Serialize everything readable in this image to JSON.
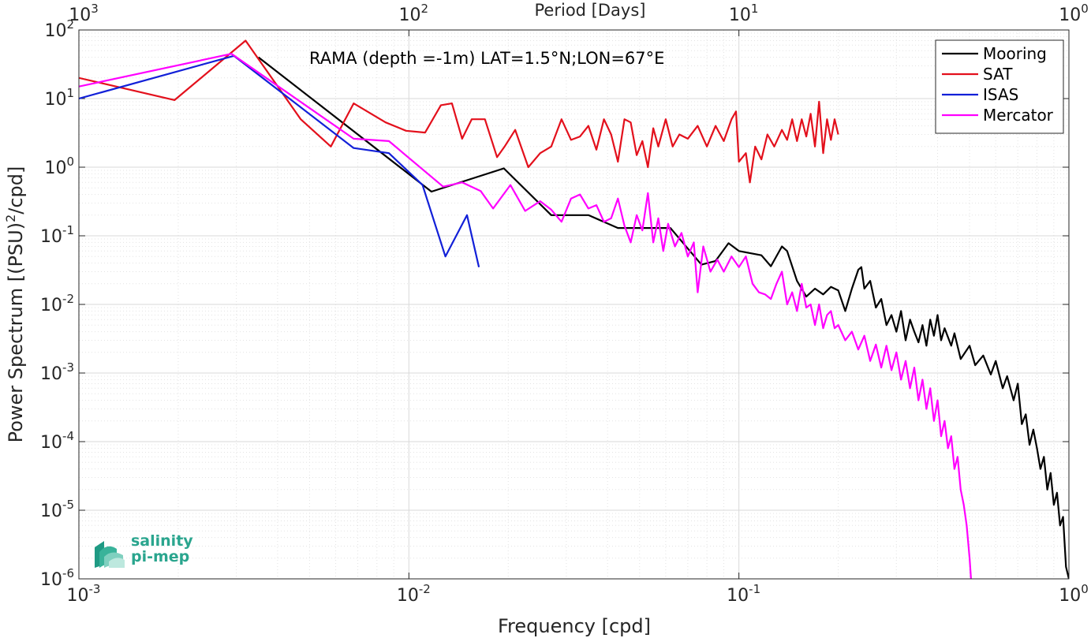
{
  "logo": {
    "line1": "salinity",
    "line2": "pi-mep",
    "color": "#2aa58e"
  },
  "chart_data": {
    "type": "line",
    "title": "RAMA (depth =-1m) LAT=1.5°N;LON=67°E",
    "xlabel": "Frequency [cpd]",
    "ylabel": "Power Spectrum [(PSU)²/cpd]",
    "top_xlabel": "Period [Days]",
    "xscale": "log",
    "yscale": "log",
    "xlim": [
      0.001,
      1
    ],
    "ylim": [
      1e-06,
      100
    ],
    "grid": true,
    "legend_position": "top-right",
    "x_ticks": [
      {
        "base": "10",
        "exp": "-3",
        "value": 0.001
      },
      {
        "base": "10",
        "exp": "-2",
        "value": 0.01
      },
      {
        "base": "10",
        "exp": "-1",
        "value": 0.1
      },
      {
        "base": "10",
        "exp": "0",
        "value": 1
      }
    ],
    "top_ticks": [
      {
        "base": "10",
        "exp": "3",
        "value": 0.001
      },
      {
        "base": "10",
        "exp": "2",
        "value": 0.01
      },
      {
        "base": "10",
        "exp": "1",
        "value": 0.1
      },
      {
        "base": "10",
        "exp": "0",
        "value": 1
      }
    ],
    "y_ticks": [
      {
        "base": "10",
        "exp": "2",
        "value": 100
      },
      {
        "base": "10",
        "exp": "1",
        "value": 10
      },
      {
        "base": "10",
        "exp": "0",
        "value": 1
      },
      {
        "base": "10",
        "exp": "-1",
        "value": 0.1
      },
      {
        "base": "10",
        "exp": "-2",
        "value": 0.01
      },
      {
        "base": "10",
        "exp": "-3",
        "value": 0.001
      },
      {
        "base": "10",
        "exp": "-4",
        "value": 0.0001
      },
      {
        "base": "10",
        "exp": "-5",
        "value": 1e-05
      },
      {
        "base": "10",
        "exp": "-6",
        "value": 1e-06
      }
    ],
    "series": [
      {
        "name": "Mooring",
        "color": "#000000",
        "points": [
          [
            0.0035,
            40
          ],
          [
            0.0117,
            0.44
          ],
          [
            0.0194,
            0.96
          ],
          [
            0.027,
            0.2
          ],
          [
            0.035,
            0.2
          ],
          [
            0.043,
            0.13
          ],
          [
            0.062,
            0.13
          ],
          [
            0.077,
            0.038
          ],
          [
            0.085,
            0.043
          ],
          [
            0.093,
            0.078
          ],
          [
            0.1,
            0.06
          ],
          [
            0.117,
            0.052
          ],
          [
            0.125,
            0.036
          ],
          [
            0.135,
            0.07
          ],
          [
            0.14,
            0.06
          ],
          [
            0.15,
            0.022
          ],
          [
            0.16,
            0.013
          ],
          [
            0.17,
            0.017
          ],
          [
            0.18,
            0.014
          ],
          [
            0.19,
            0.018
          ],
          [
            0.2,
            0.016
          ],
          [
            0.21,
            0.008
          ],
          [
            0.22,
            0.017
          ],
          [
            0.23,
            0.032
          ],
          [
            0.235,
            0.035
          ],
          [
            0.24,
            0.017
          ],
          [
            0.25,
            0.022
          ],
          [
            0.26,
            0.009
          ],
          [
            0.27,
            0.012
          ],
          [
            0.28,
            0.005
          ],
          [
            0.29,
            0.007
          ],
          [
            0.3,
            0.004
          ],
          [
            0.31,
            0.008
          ],
          [
            0.32,
            0.003
          ],
          [
            0.33,
            0.006
          ],
          [
            0.34,
            0.004
          ],
          [
            0.35,
            0.0028
          ],
          [
            0.36,
            0.005
          ],
          [
            0.37,
            0.0025
          ],
          [
            0.38,
            0.006
          ],
          [
            0.39,
            0.0035
          ],
          [
            0.4,
            0.007
          ],
          [
            0.41,
            0.003
          ],
          [
            0.42,
            0.0045
          ],
          [
            0.44,
            0.0025
          ],
          [
            0.45,
            0.0038
          ],
          [
            0.47,
            0.0016
          ],
          [
            0.5,
            0.0025
          ],
          [
            0.52,
            0.0013
          ],
          [
            0.55,
            0.0018
          ],
          [
            0.58,
            0.00095
          ],
          [
            0.6,
            0.0015
          ],
          [
            0.63,
            0.0006
          ],
          [
            0.65,
            0.0009
          ],
          [
            0.68,
            0.0004
          ],
          [
            0.7,
            0.0007
          ],
          [
            0.72,
            0.00018
          ],
          [
            0.74,
            0.00025
          ],
          [
            0.76,
            9e-05
          ],
          [
            0.78,
            0.00015
          ],
          [
            0.8,
            8e-05
          ],
          [
            0.82,
            4e-05
          ],
          [
            0.84,
            6e-05
          ],
          [
            0.86,
            2e-05
          ],
          [
            0.88,
            3.5e-05
          ],
          [
            0.9,
            1.2e-05
          ],
          [
            0.92,
            1.8e-05
          ],
          [
            0.94,
            6e-06
          ],
          [
            0.96,
            8e-06
          ],
          [
            0.98,
            1.5e-06
          ],
          [
            1.0,
            1e-06
          ]
        ]
      },
      {
        "name": "SAT",
        "color": "#e3101c",
        "points": [
          [
            0.001,
            20
          ],
          [
            0.00195,
            9.5
          ],
          [
            0.0032,
            70
          ],
          [
            0.0047,
            5
          ],
          [
            0.0058,
            2
          ],
          [
            0.0068,
            8.5
          ],
          [
            0.0085,
            4.5
          ],
          [
            0.0098,
            3.4
          ],
          [
            0.0112,
            3.2
          ],
          [
            0.0125,
            8
          ],
          [
            0.0135,
            8.5
          ],
          [
            0.0145,
            2.6
          ],
          [
            0.0155,
            5
          ],
          [
            0.017,
            5
          ],
          [
            0.0185,
            1.4
          ],
          [
            0.0195,
            2
          ],
          [
            0.021,
            3.5
          ],
          [
            0.023,
            1
          ],
          [
            0.025,
            1.6
          ],
          [
            0.027,
            2
          ],
          [
            0.029,
            5
          ],
          [
            0.031,
            2.5
          ],
          [
            0.033,
            2.8
          ],
          [
            0.035,
            4
          ],
          [
            0.037,
            1.8
          ],
          [
            0.039,
            5
          ],
          [
            0.041,
            3
          ],
          [
            0.043,
            1.2
          ],
          [
            0.045,
            5
          ],
          [
            0.047,
            4.5
          ],
          [
            0.049,
            1.5
          ],
          [
            0.051,
            2.4
          ],
          [
            0.053,
            1
          ],
          [
            0.055,
            3.7
          ],
          [
            0.057,
            2
          ],
          [
            0.06,
            5
          ],
          [
            0.063,
            2
          ],
          [
            0.066,
            3
          ],
          [
            0.07,
            2.6
          ],
          [
            0.075,
            4
          ],
          [
            0.08,
            2
          ],
          [
            0.085,
            4
          ],
          [
            0.09,
            2.4
          ],
          [
            0.095,
            5
          ],
          [
            0.098,
            6.5
          ],
          [
            0.1,
            1.2
          ],
          [
            0.105,
            1.6
          ],
          [
            0.108,
            0.6
          ],
          [
            0.112,
            2
          ],
          [
            0.117,
            1.3
          ],
          [
            0.122,
            3
          ],
          [
            0.128,
            2
          ],
          [
            0.135,
            3.5
          ],
          [
            0.14,
            2.5
          ],
          [
            0.145,
            5
          ],
          [
            0.15,
            2.4
          ],
          [
            0.155,
            5
          ],
          [
            0.16,
            2.8
          ],
          [
            0.165,
            6
          ],
          [
            0.17,
            2
          ],
          [
            0.175,
            9
          ],
          [
            0.18,
            1.6
          ],
          [
            0.185,
            5
          ],
          [
            0.19,
            2.5
          ],
          [
            0.195,
            5
          ],
          [
            0.2,
            3
          ]
        ]
      },
      {
        "name": "ISAS",
        "color": "#1220d8",
        "points": [
          [
            0.001,
            10
          ],
          [
            0.00295,
            42
          ],
          [
            0.0068,
            1.9
          ],
          [
            0.0087,
            1.6
          ],
          [
            0.011,
            0.55
          ],
          [
            0.0129,
            0.05
          ],
          [
            0.015,
            0.2
          ],
          [
            0.0163,
            0.035
          ]
        ]
      },
      {
        "name": "Mercator",
        "color": "#ff00ff",
        "points": [
          [
            0.001,
            15
          ],
          [
            0.0029,
            45
          ],
          [
            0.0068,
            2.6
          ],
          [
            0.0087,
            2.4
          ],
          [
            0.0127,
            0.52
          ],
          [
            0.0145,
            0.6
          ],
          [
            0.0165,
            0.45
          ],
          [
            0.018,
            0.25
          ],
          [
            0.0203,
            0.55
          ],
          [
            0.0225,
            0.23
          ],
          [
            0.025,
            0.32
          ],
          [
            0.027,
            0.24
          ],
          [
            0.029,
            0.16
          ],
          [
            0.031,
            0.35
          ],
          [
            0.033,
            0.4
          ],
          [
            0.035,
            0.25
          ],
          [
            0.037,
            0.28
          ],
          [
            0.039,
            0.16
          ],
          [
            0.041,
            0.18
          ],
          [
            0.043,
            0.35
          ],
          [
            0.045,
            0.14
          ],
          [
            0.047,
            0.08
          ],
          [
            0.049,
            0.2
          ],
          [
            0.051,
            0.12
          ],
          [
            0.053,
            0.42
          ],
          [
            0.055,
            0.08
          ],
          [
            0.057,
            0.18
          ],
          [
            0.059,
            0.06
          ],
          [
            0.061,
            0.15
          ],
          [
            0.064,
            0.07
          ],
          [
            0.067,
            0.11
          ],
          [
            0.07,
            0.05
          ],
          [
            0.073,
            0.08
          ],
          [
            0.075,
            0.015
          ],
          [
            0.078,
            0.07
          ],
          [
            0.082,
            0.03
          ],
          [
            0.086,
            0.045
          ],
          [
            0.09,
            0.03
          ],
          [
            0.095,
            0.05
          ],
          [
            0.1,
            0.035
          ],
          [
            0.105,
            0.05
          ],
          [
            0.11,
            0.02
          ],
          [
            0.115,
            0.015
          ],
          [
            0.12,
            0.014
          ],
          [
            0.125,
            0.012
          ],
          [
            0.13,
            0.02
          ],
          [
            0.135,
            0.03
          ],
          [
            0.14,
            0.01
          ],
          [
            0.145,
            0.015
          ],
          [
            0.15,
            0.008
          ],
          [
            0.155,
            0.02
          ],
          [
            0.16,
            0.009
          ],
          [
            0.165,
            0.01
          ],
          [
            0.17,
            0.005
          ],
          [
            0.175,
            0.01
          ],
          [
            0.18,
            0.0045
          ],
          [
            0.185,
            0.007
          ],
          [
            0.19,
            0.008
          ],
          [
            0.195,
            0.0045
          ],
          [
            0.2,
            0.005
          ],
          [
            0.21,
            0.003
          ],
          [
            0.22,
            0.004
          ],
          [
            0.23,
            0.0022
          ],
          [
            0.24,
            0.0035
          ],
          [
            0.25,
            0.0015
          ],
          [
            0.26,
            0.0026
          ],
          [
            0.27,
            0.0012
          ],
          [
            0.28,
            0.0025
          ],
          [
            0.29,
            0.0011
          ],
          [
            0.3,
            0.002
          ],
          [
            0.31,
            0.0008
          ],
          [
            0.32,
            0.0015
          ],
          [
            0.33,
            0.0006
          ],
          [
            0.34,
            0.0012
          ],
          [
            0.35,
            0.0004
          ],
          [
            0.36,
            0.0008
          ],
          [
            0.37,
            0.0003
          ],
          [
            0.38,
            0.0006
          ],
          [
            0.39,
            0.0002
          ],
          [
            0.4,
            0.0004
          ],
          [
            0.41,
            0.00012
          ],
          [
            0.42,
            0.0002
          ],
          [
            0.43,
            8e-05
          ],
          [
            0.44,
            0.00012
          ],
          [
            0.45,
            4e-05
          ],
          [
            0.46,
            6e-05
          ],
          [
            0.47,
            2e-05
          ],
          [
            0.48,
            1.2e-05
          ],
          [
            0.49,
            6e-06
          ],
          [
            0.5,
            2e-06
          ],
          [
            0.505,
            1e-06
          ]
        ]
      }
    ]
  }
}
